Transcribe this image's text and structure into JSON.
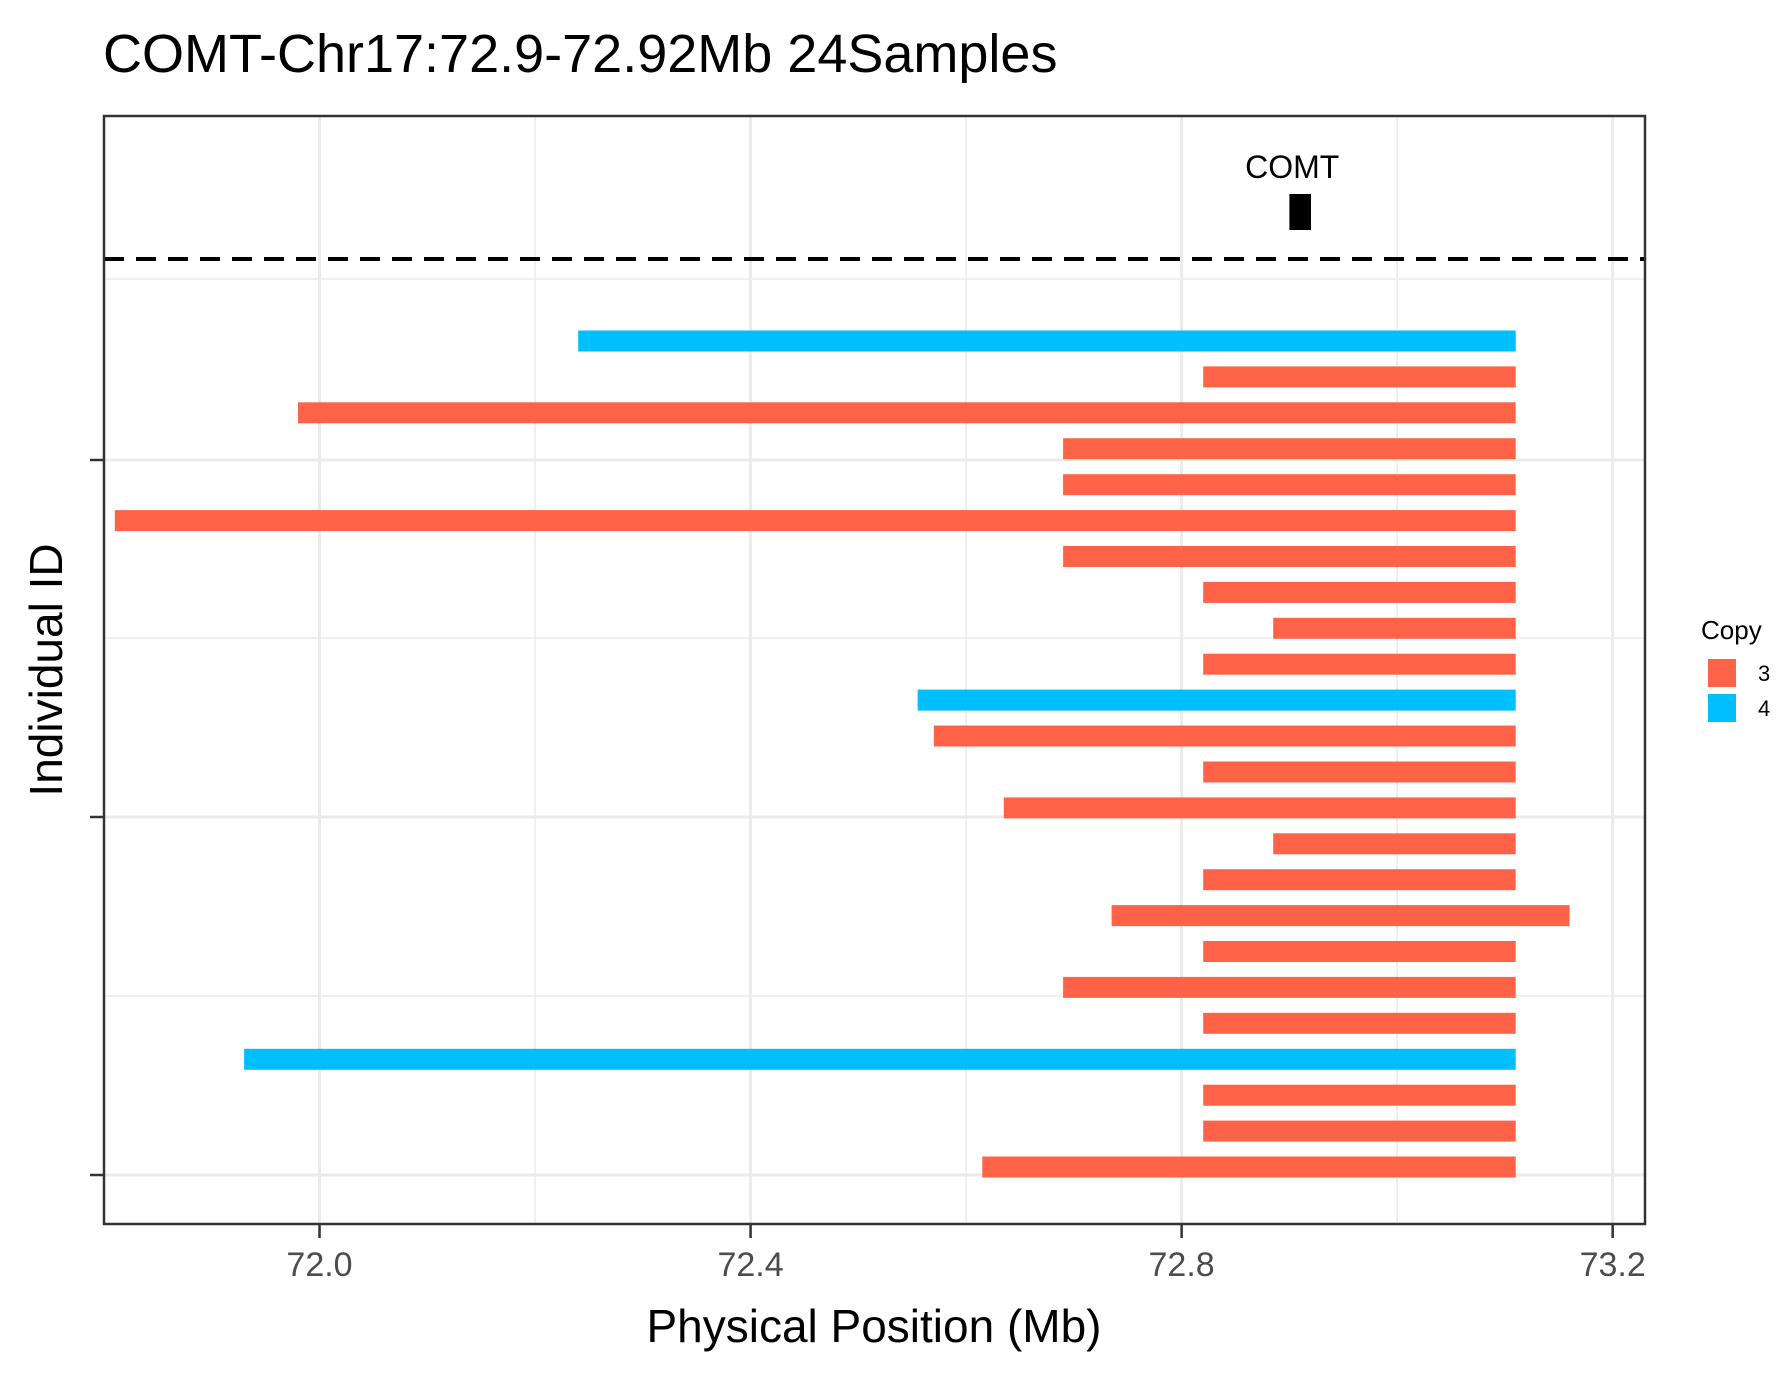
{
  "chart_data": {
    "type": "bar",
    "orientation": "horizontal-segments",
    "title": "COMT-Chr17:72.9-72.92Mb 24Samples",
    "xlabel": "Physical Position (Mb)",
    "ylabel": "Individual ID",
    "xlim": [
      71.8,
      73.23
    ],
    "x_ticks": [
      72.0,
      72.4,
      72.8,
      73.2
    ],
    "x_tick_labels": [
      "72.0",
      "72.4",
      "72.8",
      "73.2"
    ],
    "grid": true,
    "legend": {
      "title": "Copy",
      "placement": "right",
      "items": [
        {
          "label": "3",
          "color": "#FF6347"
        },
        {
          "label": "4",
          "color": "#00BFFF"
        }
      ]
    },
    "gene": {
      "name": "COMT",
      "start": 72.9,
      "end": 72.92
    },
    "segments": [
      {
        "start": 72.24,
        "end": 73.11,
        "copy": "4"
      },
      {
        "start": 72.82,
        "end": 73.11,
        "copy": "3"
      },
      {
        "start": 71.98,
        "end": 73.11,
        "copy": "3"
      },
      {
        "start": 72.69,
        "end": 73.11,
        "copy": "3"
      },
      {
        "start": 72.69,
        "end": 73.11,
        "copy": "3"
      },
      {
        "start": 71.81,
        "end": 73.11,
        "copy": "3"
      },
      {
        "start": 72.69,
        "end": 73.11,
        "copy": "3"
      },
      {
        "start": 72.82,
        "end": 73.11,
        "copy": "3"
      },
      {
        "start": 72.885,
        "end": 73.11,
        "copy": "3"
      },
      {
        "start": 72.82,
        "end": 73.11,
        "copy": "3"
      },
      {
        "start": 72.555,
        "end": 73.11,
        "copy": "4"
      },
      {
        "start": 72.57,
        "end": 73.11,
        "copy": "3"
      },
      {
        "start": 72.82,
        "end": 73.11,
        "copy": "3"
      },
      {
        "start": 72.635,
        "end": 73.11,
        "copy": "3"
      },
      {
        "start": 72.885,
        "end": 73.11,
        "copy": "3"
      },
      {
        "start": 72.82,
        "end": 73.11,
        "copy": "3"
      },
      {
        "start": 72.735,
        "end": 73.16,
        "copy": "3"
      },
      {
        "start": 72.82,
        "end": 73.11,
        "copy": "3"
      },
      {
        "start": 72.69,
        "end": 73.11,
        "copy": "3"
      },
      {
        "start": 72.82,
        "end": 73.11,
        "copy": "3"
      },
      {
        "start": 71.93,
        "end": 73.11,
        "copy": "4"
      },
      {
        "start": 72.82,
        "end": 73.11,
        "copy": "3"
      },
      {
        "start": 72.82,
        "end": 73.11,
        "copy": "3"
      },
      {
        "start": 72.615,
        "end": 73.11,
        "copy": "3"
      }
    ]
  }
}
